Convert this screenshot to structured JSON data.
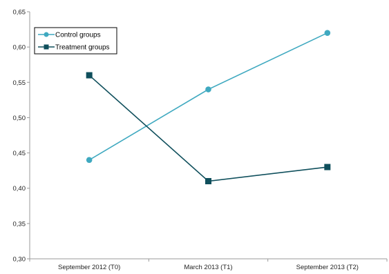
{
  "chart_data": {
    "type": "line",
    "categories": [
      "September 2012 (T0)",
      "March 2013 (T1)",
      "September 2013 (T2)"
    ],
    "series": [
      {
        "name": "Control groups",
        "values": [
          0.44,
          0.54,
          0.62
        ],
        "color": "#3FA9C0",
        "marker": "circle"
      },
      {
        "name": "Treatment groups",
        "values": [
          0.56,
          0.41,
          0.43
        ],
        "color": "#0F4F5C",
        "marker": "square"
      }
    ],
    "ylim": [
      0.3,
      0.65
    ],
    "yticks": [
      0.3,
      0.35,
      0.4,
      0.45,
      0.5,
      0.55,
      0.6,
      0.65
    ],
    "ytick_labels": [
      "0,30",
      "0,35",
      "0,40",
      "0,45",
      "0,50",
      "0,55",
      "0,60",
      "0,65"
    ],
    "grid": false,
    "legend_position": "top-left",
    "title": "",
    "xlabel": "",
    "ylabel": ""
  }
}
